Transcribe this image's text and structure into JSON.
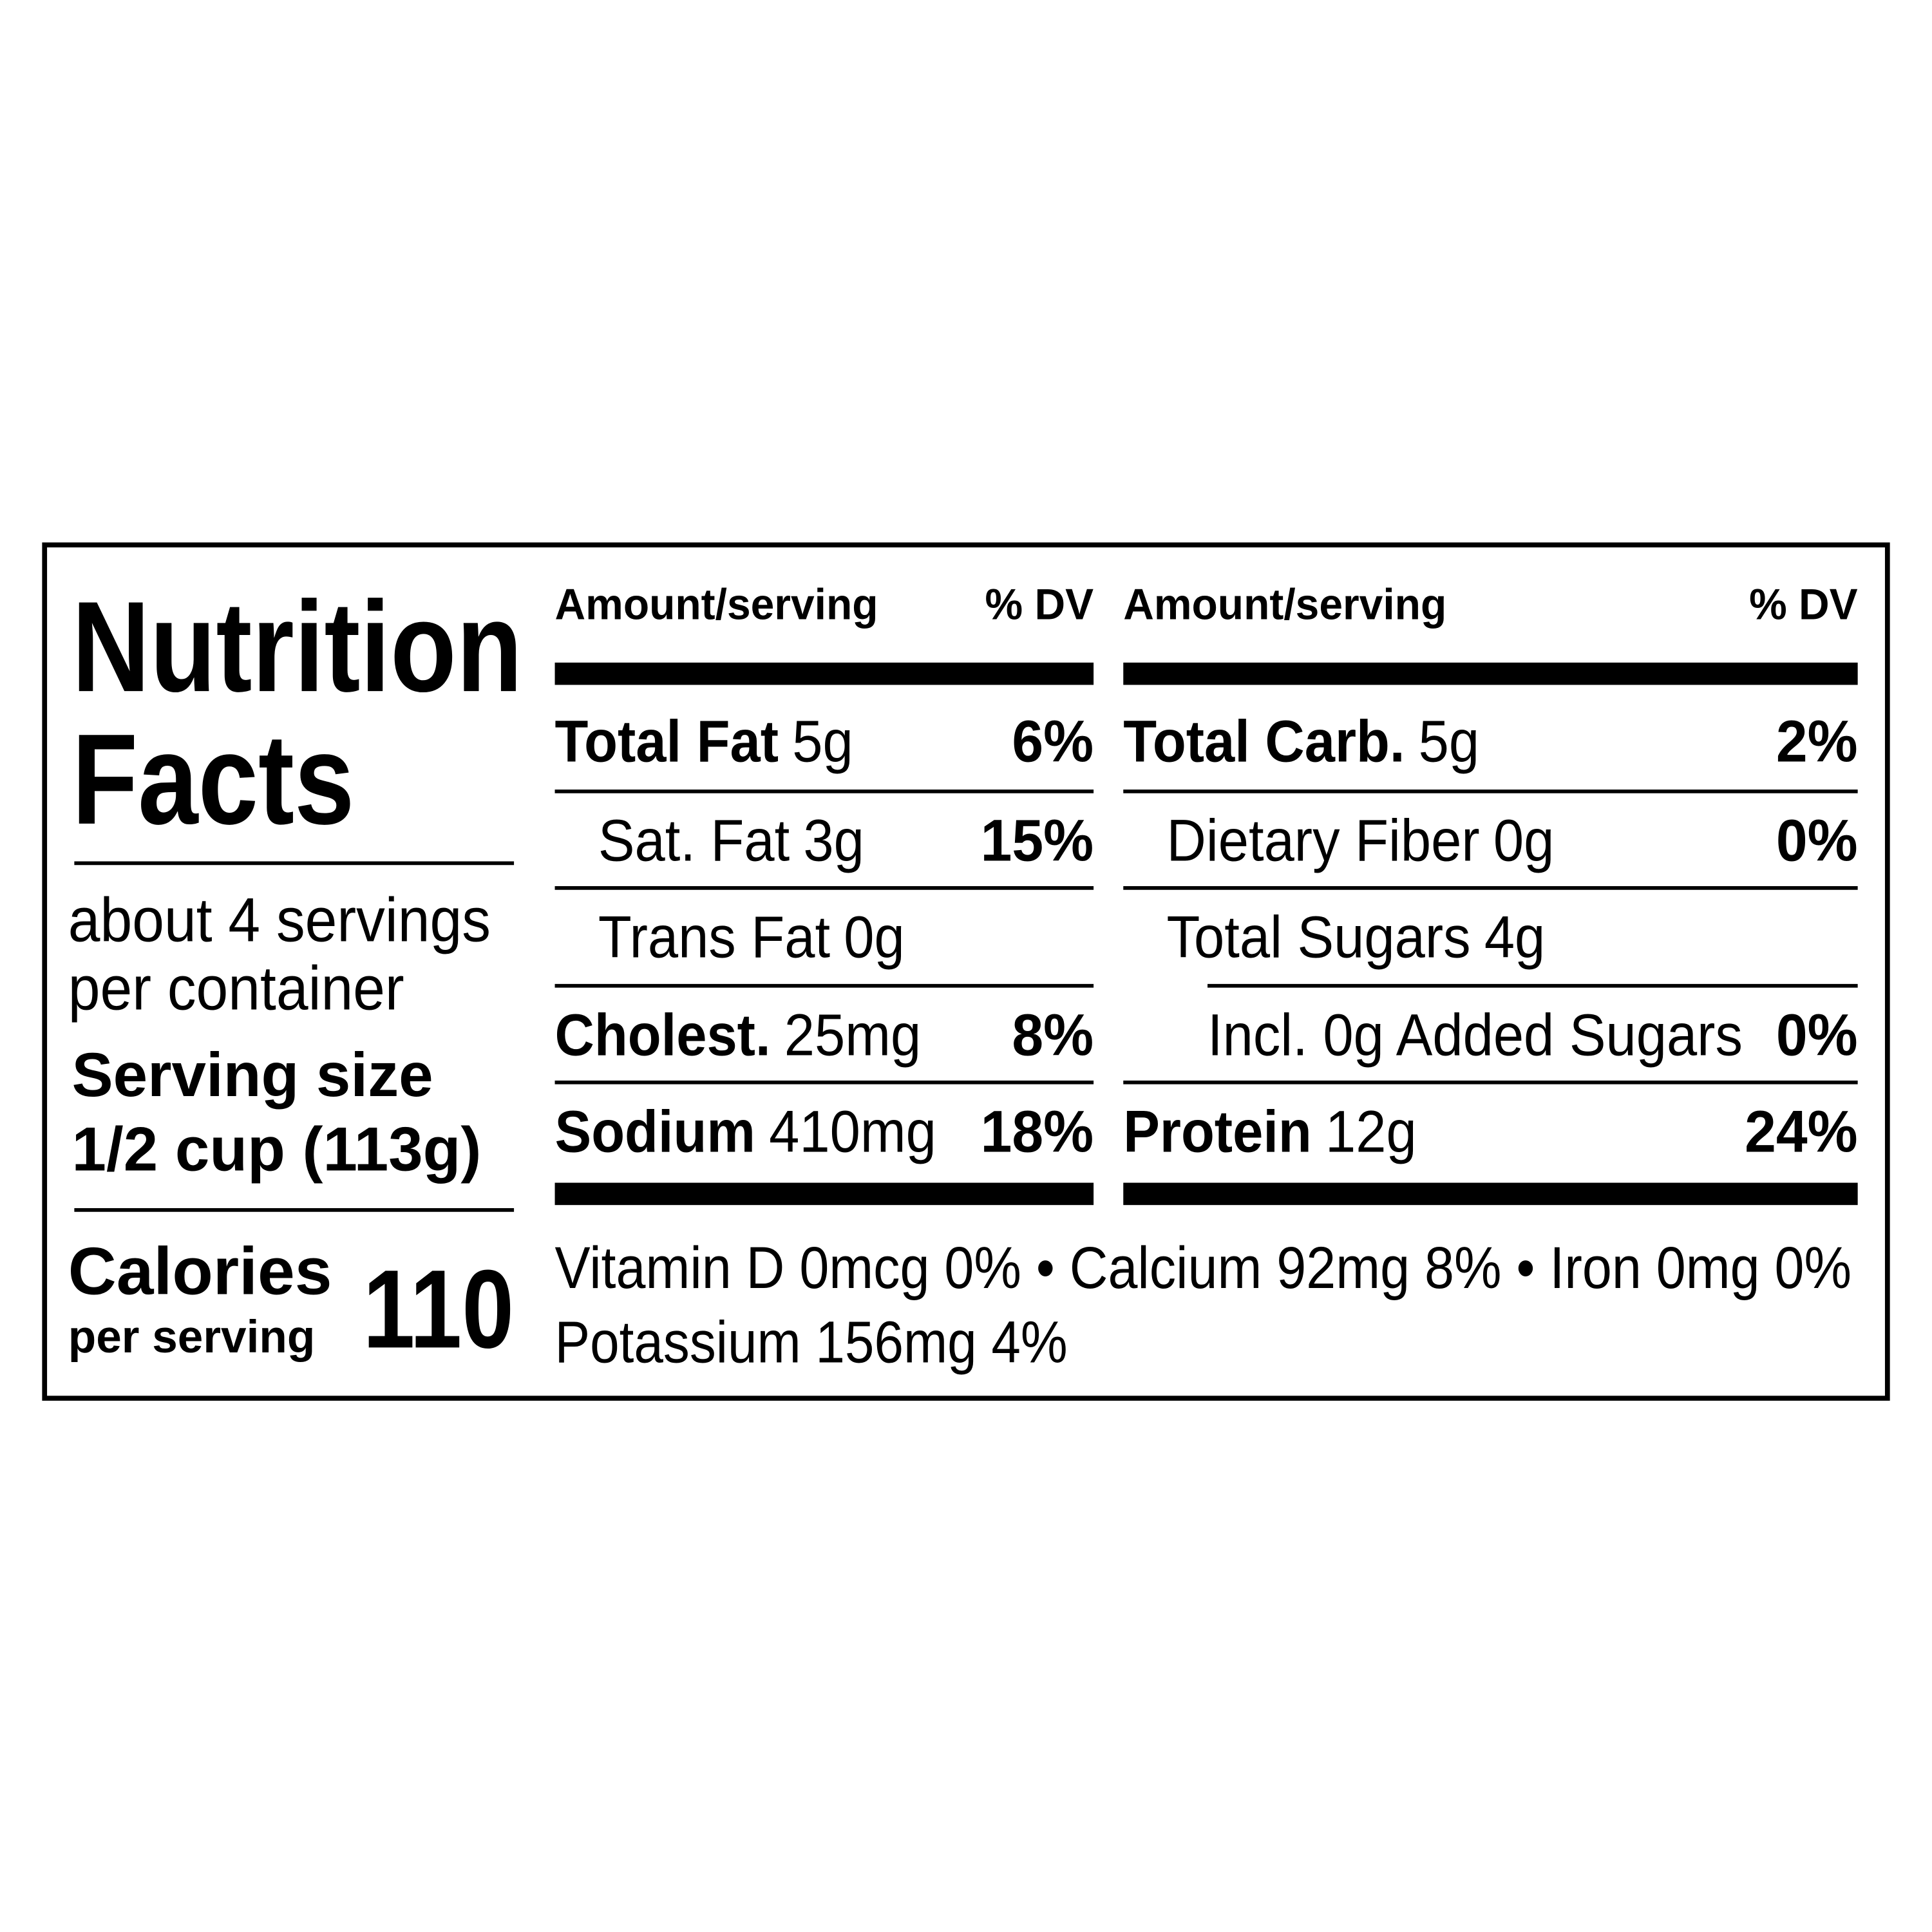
{
  "title": [
    "Nutrition",
    "Facts"
  ],
  "servings": [
    "about 4 servings",
    "per container"
  ],
  "serving_size": {
    "label": "Serving size",
    "amount": "1/2 cup (113g)"
  },
  "calories": {
    "label": "Calories",
    "sublabel": "per serving",
    "value": 110
  },
  "columns": [
    {
      "header_amount": "Amount/serving",
      "header_dv": "% DV",
      "rows": [
        {
          "name": "Total Fat",
          "amount": "5g",
          "dv": "6%",
          "bold": true,
          "indent": 0
        },
        {
          "name": "Sat. Fat",
          "amount": "3g",
          "dv": "15%",
          "bold": false,
          "indent": 1
        },
        {
          "name": "Trans Fat",
          "amount": "0g",
          "bold": false,
          "indent": 1
        },
        {
          "name": "Cholest.",
          "amount": "25mg",
          "dv": "8%",
          "bold": true,
          "indent": 0
        },
        {
          "name": "Sodium",
          "amount": "410mg",
          "dv": "18%",
          "bold": true,
          "indent": 0
        }
      ]
    },
    {
      "header_amount": "Amount/serving",
      "header_dv": "% DV",
      "rows": [
        {
          "name": "Total Carb.",
          "amount": "5g",
          "dv": "2%",
          "bold": true,
          "indent": 0
        },
        {
          "name": "Dietary Fiber",
          "amount": "0g",
          "dv": "0%",
          "bold": false,
          "indent": 1
        },
        {
          "name": "Total Sugars",
          "amount": "4g",
          "bold": false,
          "indent": 1
        },
        {
          "name": "Incl. 0g Added Sugars",
          "dv": "0%",
          "bold": false,
          "indent": 2
        },
        {
          "name": "Protein",
          "amount": "12g",
          "dv": "24%",
          "bold": true,
          "indent": 0
        }
      ]
    }
  ],
  "footer": [
    "Vitamin D 0mcg 0% • Calcium 92mg 8% • Iron 0mg 0%",
    "Potassium 156mg 4%"
  ]
}
